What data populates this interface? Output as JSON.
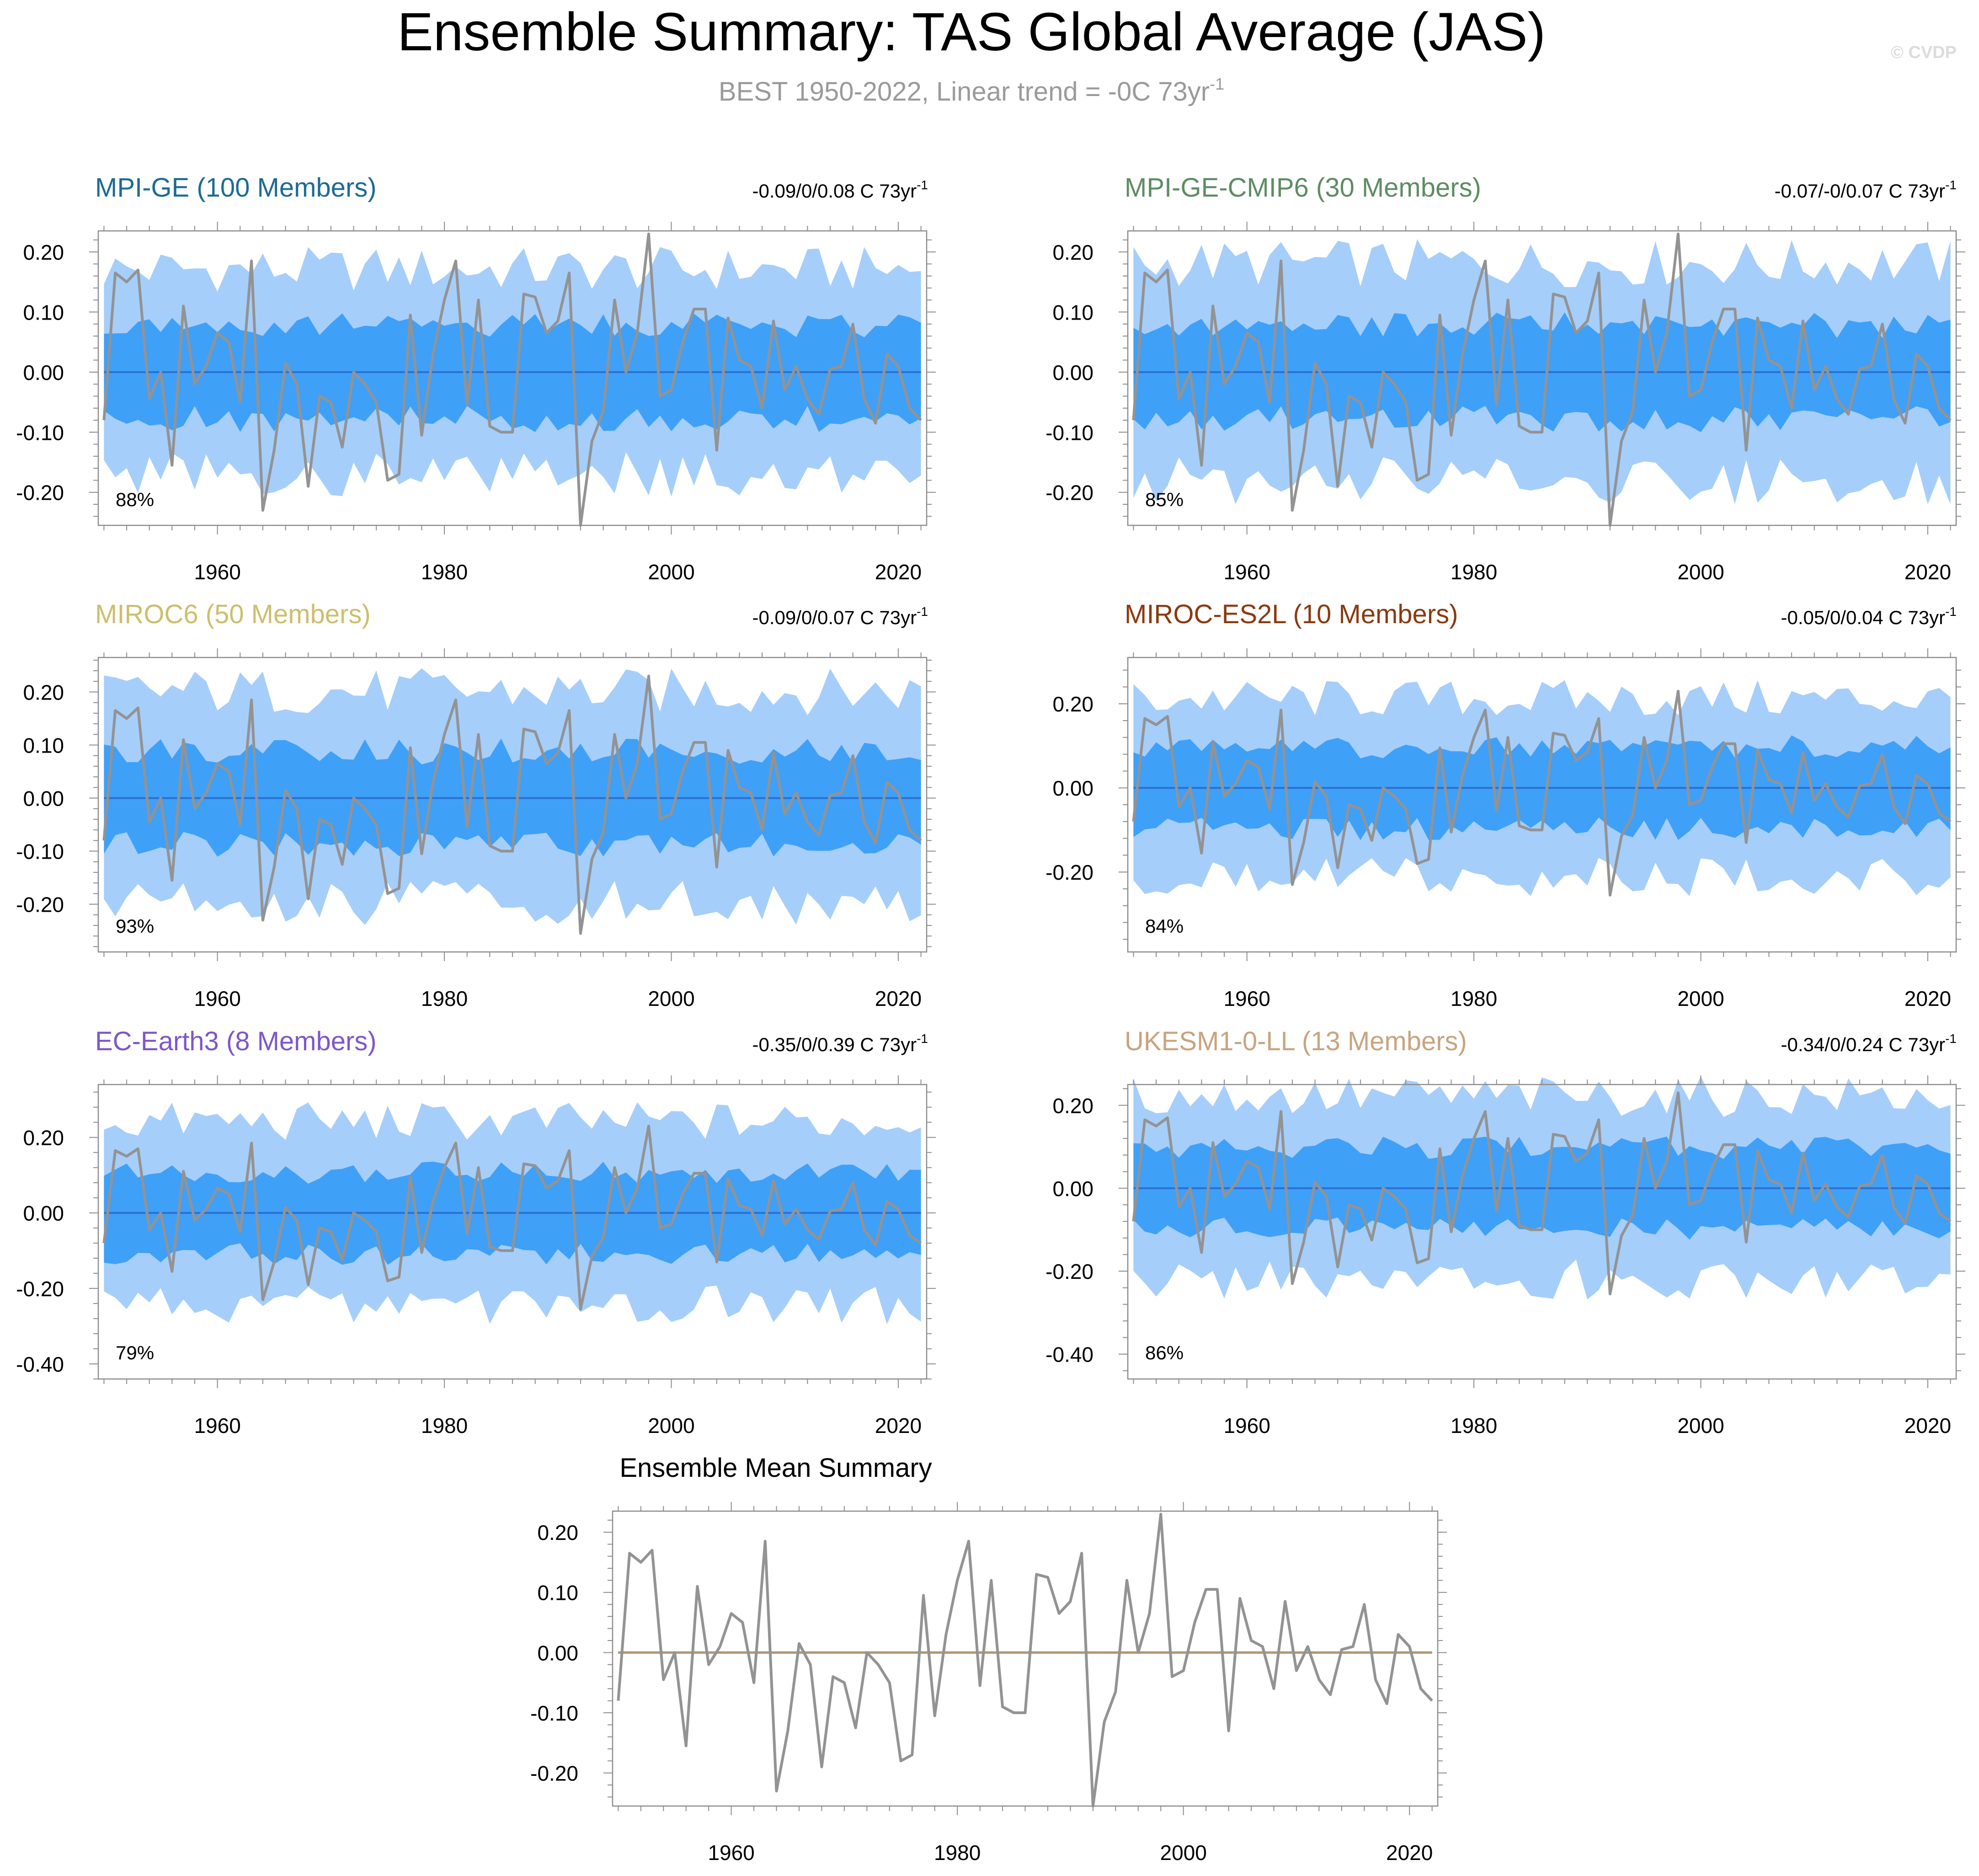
{
  "title": "Ensemble Summary: TAS Global Average (JAS)",
  "subtitle": {
    "text": "BEST 1950-2022, Linear trend = -0C 73yr",
    "superscript": "-1"
  },
  "watermark": "© CVDP",
  "colors": {
    "outer_band": "#a6cefa",
    "inner_band": "#3fa0f8",
    "ensemble_mean": "#2a6fd1",
    "observations": "#939393",
    "summary_zero_line": "#b39778",
    "axis": "#8c8c8c",
    "subtitle": "#9a9a9a",
    "watermark": "#dcdcdc"
  },
  "chart_data": [
    {
      "type": "area",
      "panel_title": "MPI-GE (100 Members)",
      "title_color": "#1c6b94",
      "trend_label": "-0.09/0/0.08 C 73yr",
      "trend_superscript": "-1",
      "pct_label": "88%",
      "xlim": [
        1949.5,
        2022.5
      ],
      "ylim": [
        -0.255,
        0.235
      ],
      "yticks": [
        0.2,
        0.1,
        0.0,
        -0.1,
        -0.2
      ],
      "ytick_labels": [
        "0.20",
        "0.10",
        "0.00",
        "-0.10",
        "-0.20"
      ],
      "xticks": [
        1960,
        1980,
        2000,
        2020
      ],
      "xtick_labels": [
        "1960",
        "1980",
        "2000",
        "2020"
      ],
      "band_outer": 0.17,
      "band_inner": 0.08,
      "ensemble_mean": 0.0
    },
    {
      "type": "area",
      "panel_title": "MPI-GE-CMIP6 (30 Members)",
      "title_color": "#5e8c64",
      "trend_label": "-0.07/-0/0.07 C 73yr",
      "trend_superscript": "-1",
      "pct_label": "85%",
      "xlim": [
        1949.5,
        2022.5
      ],
      "ylim": [
        -0.255,
        0.235
      ],
      "yticks": [
        0.2,
        0.1,
        0.0,
        -0.1,
        -0.2
      ],
      "ytick_labels": [
        "0.20",
        "0.10",
        "0.00",
        "-0.10",
        "-0.20"
      ],
      "xticks": [
        1960,
        1980,
        2000,
        2020
      ],
      "xtick_labels": [
        "1960",
        "1980",
        "2000",
        "2020"
      ],
      "band_outer": 0.18,
      "band_inner": 0.08,
      "ensemble_mean": 0.0
    },
    {
      "type": "area",
      "panel_title": "MIROC6 (50 Members)",
      "title_color": "#cbbf6e",
      "trend_label": "-0.09/0/0.07 C 73yr",
      "trend_superscript": "-1",
      "pct_label": "93%",
      "xlim": [
        1949.5,
        2022.5
      ],
      "ylim": [
        -0.29,
        0.265
      ],
      "yticks": [
        0.2,
        0.1,
        0.0,
        -0.1,
        -0.2
      ],
      "ytick_labels": [
        "0.20",
        "0.10",
        "0.00",
        "-0.10",
        "-0.20"
      ],
      "xticks": [
        1960,
        1980,
        2000,
        2020
      ],
      "xtick_labels": [
        "1960",
        "1980",
        "2000",
        "2020"
      ],
      "band_outer": 0.2,
      "band_inner": 0.09,
      "ensemble_mean": 0.0
    },
    {
      "type": "area",
      "panel_title": "MIROC-ES2L (10 Members)",
      "title_color": "#8a3a10",
      "trend_label": "-0.05/0/0.04 C 73yr",
      "trend_superscript": "-1",
      "pct_label": "84%",
      "xlim": [
        1949.5,
        2022.5
      ],
      "ylim": [
        -0.39,
        0.31
      ],
      "yticks": [
        0.2,
        0.0,
        -0.2
      ],
      "ytick_labels": [
        "0.20",
        "0.00",
        "-0.20"
      ],
      "xticks": [
        1960,
        1980,
        2000,
        2020
      ],
      "xtick_labels": [
        "1960",
        "1980",
        "2000",
        "2020"
      ],
      "band_outer": 0.21,
      "band_inner": 0.1,
      "ensemble_mean": 0.0
    },
    {
      "type": "area",
      "panel_title": "EC-Earth3 (8 Members)",
      "title_color": "#7e57c8",
      "trend_label": "-0.35/0/0.39 C 73yr",
      "trend_superscript": "-1",
      "pct_label": "79%",
      "xlim": [
        1949.5,
        2022.5
      ],
      "ylim": [
        -0.44,
        0.34
      ],
      "yticks": [
        0.2,
        0.0,
        -0.2,
        -0.4
      ],
      "ytick_labels": [
        "0.20",
        "0.00",
        "-0.20",
        "-0.40"
      ],
      "xticks": [
        1960,
        1980,
        2000,
        2020
      ],
      "xtick_labels": [
        "1960",
        "1980",
        "2000",
        "2020"
      ],
      "band_outer": 0.24,
      "band_inner": 0.11,
      "ensemble_mean": 0.0
    },
    {
      "type": "area",
      "panel_title": "UKESM1-0-LL (13 Members)",
      "title_color": "#c8a47e",
      "trend_label": "-0.34/0/0.24 C 73yr",
      "trend_superscript": "-1",
      "pct_label": "86%",
      "xlim": [
        1949.5,
        2022.5
      ],
      "ylim": [
        -0.46,
        0.25
      ],
      "yticks": [
        0.2,
        0.0,
        -0.2,
        -0.4
      ],
      "ytick_labels": [
        "0.20",
        "0.00",
        "-0.20",
        "-0.40"
      ],
      "xticks": [
        1960,
        1980,
        2000,
        2020
      ],
      "xtick_labels": [
        "1960",
        "1980",
        "2000",
        "2020"
      ],
      "band_outer": 0.22,
      "band_inner": 0.1,
      "ensemble_mean": 0.0
    },
    {
      "type": "line",
      "panel_title": "Ensemble Mean Summary",
      "title_color": "#000000",
      "xlim": [
        1949.5,
        2022.5
      ],
      "ylim": [
        -0.255,
        0.235
      ],
      "yticks": [
        0.2,
        0.1,
        0.0,
        -0.1,
        -0.2
      ],
      "ytick_labels": [
        "0.20",
        "0.10",
        "0.00",
        "-0.10",
        "-0.20"
      ],
      "xticks": [
        1960,
        1980,
        2000,
        2020
      ],
      "xtick_labels": [
        "1960",
        "1980",
        "2000",
        "2020"
      ],
      "ensemble_means": [
        0.0,
        0.0,
        0.0,
        0.0,
        0.0,
        0.0
      ]
    }
  ],
  "observations": {
    "name": "BEST",
    "years": [
      1950,
      1951,
      1952,
      1953,
      1954,
      1955,
      1956,
      1957,
      1958,
      1959,
      1960,
      1961,
      1962,
      1963,
      1964,
      1965,
      1966,
      1967,
      1968,
      1969,
      1970,
      1971,
      1972,
      1973,
      1974,
      1975,
      1976,
      1977,
      1978,
      1979,
      1980,
      1981,
      1982,
      1983,
      1984,
      1985,
      1986,
      1987,
      1988,
      1989,
      1990,
      1991,
      1992,
      1993,
      1994,
      1995,
      1996,
      1997,
      1998,
      1999,
      2000,
      2001,
      2002,
      2003,
      2004,
      2005,
      2006,
      2007,
      2008,
      2009,
      2010,
      2011,
      2012,
      2013,
      2014,
      2015,
      2016,
      2017,
      2018,
      2019,
      2020,
      2021,
      2022
    ],
    "values": [
      -0.08,
      0.165,
      0.15,
      0.17,
      -0.045,
      0.0,
      -0.155,
      0.11,
      -0.02,
      0.01,
      0.065,
      0.05,
      -0.05,
      0.185,
      -0.23,
      -0.13,
      0.015,
      -0.02,
      -0.19,
      -0.04,
      -0.05,
      -0.125,
      0.0,
      -0.02,
      -0.05,
      -0.18,
      -0.17,
      0.095,
      -0.105,
      0.03,
      0.12,
      0.185,
      -0.055,
      0.12,
      -0.09,
      -0.1,
      -0.1,
      0.13,
      0.125,
      0.065,
      0.085,
      0.165,
      -0.255,
      -0.115,
      -0.065,
      0.12,
      0.0,
      0.065,
      0.23,
      -0.04,
      -0.03,
      0.05,
      0.105,
      0.105,
      -0.13,
      0.09,
      0.02,
      0.01,
      -0.06,
      0.085,
      -0.03,
      0.01,
      -0.045,
      -0.07,
      0.005,
      0.01,
      0.08,
      -0.045,
      -0.085,
      0.03,
      0.01,
      -0.06,
      -0.08
    ]
  }
}
